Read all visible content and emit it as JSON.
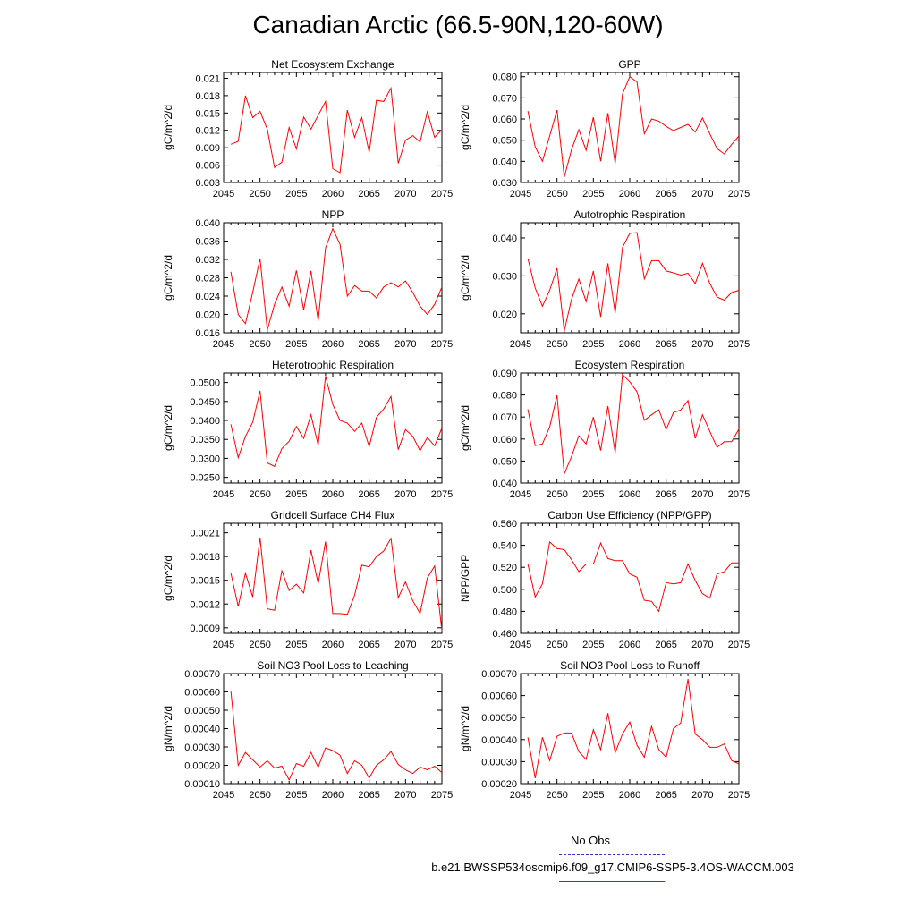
{
  "title": "Canadian Arctic (66.5-90N,120-60W)",
  "legend": {
    "obs_label": "No Obs",
    "obs_color": "#3333cc",
    "case_label": "b.e21.BWSSP534oscmip6.f09_g17.CMIP6-SSP5-3.4OS-WACCM.003",
    "case_color": "#ff0000"
  },
  "chart_data": [
    {
      "type": "line",
      "title": "Net Ecosystem Exchange",
      "ylabel": "gC/m^2/d",
      "xlim": [
        2045,
        2075
      ],
      "ylim": [
        0.003,
        0.022
      ],
      "xticks": [
        "2045",
        "2050",
        "2055",
        "2060",
        "2065",
        "2070",
        "2075"
      ],
      "yticks": [
        "0.003",
        "0.006",
        "0.009",
        "0.012",
        "0.015",
        "0.018",
        "0.021"
      ],
      "x": [
        2046,
        2047,
        2048,
        2049,
        2050,
        2051,
        2052,
        2053,
        2054,
        2055,
        2056,
        2057,
        2058,
        2059,
        2060,
        2061,
        2062,
        2063,
        2064,
        2065,
        2066,
        2067,
        2068,
        2069,
        2070,
        2071,
        2072,
        2073,
        2074,
        2075
      ],
      "values": [
        0.0096,
        0.0101,
        0.018,
        0.0142,
        0.0153,
        0.0122,
        0.0056,
        0.0065,
        0.0125,
        0.0088,
        0.0143,
        0.0122,
        0.0146,
        0.017,
        0.0054,
        0.0047,
        0.0155,
        0.0108,
        0.0142,
        0.0082,
        0.0172,
        0.017,
        0.0193,
        0.0063,
        0.0103,
        0.0111,
        0.01,
        0.0152,
        0.0108,
        0.0121
      ]
    },
    {
      "type": "line",
      "title": "GPP",
      "ylabel": "gC/m^2/d",
      "xlim": [
        2045,
        2075
      ],
      "ylim": [
        0.03,
        0.082
      ],
      "xticks": [
        "2045",
        "2050",
        "2055",
        "2060",
        "2065",
        "2070",
        "2075"
      ],
      "yticks": [
        "0.030",
        "0.040",
        "0.050",
        "0.060",
        "0.070",
        "0.080"
      ],
      "x": [
        2046,
        2047,
        2048,
        2049,
        2050,
        2051,
        2052,
        2053,
        2054,
        2055,
        2056,
        2057,
        2058,
        2059,
        2060,
        2061,
        2062,
        2063,
        2064,
        2065,
        2066,
        2067,
        2068,
        2069,
        2070,
        2071,
        2072,
        2073,
        2074,
        2075
      ],
      "values": [
        0.0638,
        0.0468,
        0.04,
        0.052,
        0.0642,
        0.0325,
        0.0455,
        0.055,
        0.0452,
        0.0608,
        0.04,
        0.0628,
        0.039,
        0.0718,
        0.08,
        0.0775,
        0.053,
        0.06,
        0.059,
        0.0565,
        0.0545,
        0.056,
        0.0575,
        0.0538,
        0.0605,
        0.053,
        0.046,
        0.0435,
        0.048,
        0.052
      ]
    },
    {
      "type": "line",
      "title": "NPP",
      "ylabel": "gC/m^2/d",
      "xlim": [
        2045,
        2075
      ],
      "ylim": [
        0.016,
        0.04
      ],
      "xticks": [
        "2045",
        "2050",
        "2055",
        "2060",
        "2065",
        "2070",
        "2075"
      ],
      "yticks": [
        "0.016",
        "0.020",
        "0.024",
        "0.028",
        "0.032",
        "0.036",
        "0.040"
      ],
      "x": [
        2046,
        2047,
        2048,
        2049,
        2050,
        2051,
        2052,
        2053,
        2054,
        2055,
        2056,
        2057,
        2058,
        2059,
        2060,
        2061,
        2062,
        2063,
        2064,
        2065,
        2066,
        2067,
        2068,
        2069,
        2070,
        2071,
        2072,
        2073,
        2074,
        2075
      ],
      "values": [
        0.0293,
        0.02,
        0.018,
        0.0248,
        0.0322,
        0.0166,
        0.0222,
        0.026,
        0.0218,
        0.0296,
        0.021,
        0.0295,
        0.0186,
        0.0345,
        0.0387,
        0.0353,
        0.024,
        0.0263,
        0.0251,
        0.0251,
        0.0236,
        0.026,
        0.0269,
        0.026,
        0.0273,
        0.0248,
        0.0218,
        0.02,
        0.0222,
        0.026
      ]
    },
    {
      "type": "line",
      "title": "Autotrophic Respiration",
      "ylabel": "gC/m^2/d",
      "xlim": [
        2045,
        2075
      ],
      "ylim": [
        0.015,
        0.044
      ],
      "xticks": [
        "2045",
        "2050",
        "2055",
        "2060",
        "2065",
        "2070",
        "2075"
      ],
      "yticks": [
        "0.020",
        "0.030",
        "0.040"
      ],
      "x": [
        2046,
        2047,
        2048,
        2049,
        2050,
        2051,
        2052,
        2053,
        2054,
        2055,
        2056,
        2057,
        2058,
        2059,
        2060,
        2061,
        2062,
        2063,
        2064,
        2065,
        2066,
        2067,
        2068,
        2069,
        2070,
        2071,
        2072,
        2073,
        2074,
        2075
      ],
      "values": [
        0.0346,
        0.0268,
        0.022,
        0.0262,
        0.032,
        0.0155,
        0.0238,
        0.0292,
        0.0232,
        0.0313,
        0.0192,
        0.0333,
        0.0202,
        0.0375,
        0.0412,
        0.0414,
        0.0292,
        0.034,
        0.034,
        0.0313,
        0.0308,
        0.0302,
        0.0307,
        0.028,
        0.0333,
        0.028,
        0.0244,
        0.0236,
        0.0256,
        0.0262
      ]
    },
    {
      "type": "line",
      "title": "Heterotrophic Respiration",
      "ylabel": "gC/m^2/d",
      "xlim": [
        2045,
        2075
      ],
      "ylim": [
        0.0235,
        0.0525
      ],
      "xticks": [
        "2045",
        "2050",
        "2055",
        "2060",
        "2065",
        "2070",
        "2075"
      ],
      "yticks": [
        "0.0250",
        "0.0300",
        "0.0350",
        "0.0400",
        "0.0450",
        "0.0500"
      ],
      "x": [
        2046,
        2047,
        2048,
        2049,
        2050,
        2051,
        2052,
        2053,
        2054,
        2055,
        2056,
        2057,
        2058,
        2059,
        2060,
        2061,
        2062,
        2063,
        2064,
        2065,
        2066,
        2067,
        2068,
        2069,
        2070,
        2071,
        2072,
        2073,
        2074,
        2075
      ],
      "values": [
        0.039,
        0.0302,
        0.0358,
        0.0395,
        0.0478,
        0.0288,
        0.0279,
        0.0326,
        0.0345,
        0.0384,
        0.0353,
        0.0415,
        0.0335,
        0.0517,
        0.0442,
        0.04,
        0.0393,
        0.0371,
        0.0393,
        0.0331,
        0.0408,
        0.043,
        0.0463,
        0.0323,
        0.0376,
        0.0358,
        0.032,
        0.0355,
        0.0333,
        0.038
      ]
    },
    {
      "type": "line",
      "title": "Ecosystem Respiration",
      "ylabel": "gC/m^2/d",
      "xlim": [
        2045,
        2075
      ],
      "ylim": [
        0.04,
        0.09
      ],
      "xticks": [
        "2045",
        "2050",
        "2055",
        "2060",
        "2065",
        "2070",
        "2075"
      ],
      "yticks": [
        "0.040",
        "0.050",
        "0.060",
        "0.070",
        "0.080",
        "0.090"
      ],
      "x": [
        2046,
        2047,
        2048,
        2049,
        2050,
        2051,
        2052,
        2053,
        2054,
        2055,
        2056,
        2057,
        2058,
        2059,
        2060,
        2061,
        2062,
        2063,
        2064,
        2065,
        2066,
        2067,
        2068,
        2069,
        2070,
        2071,
        2072,
        2073,
        2074,
        2075
      ],
      "values": [
        0.0735,
        0.057,
        0.0578,
        0.0655,
        0.0798,
        0.0442,
        0.052,
        0.0615,
        0.0578,
        0.07,
        0.0548,
        0.075,
        0.0538,
        0.0893,
        0.086,
        0.0815,
        0.0685,
        0.071,
        0.0733,
        0.0643,
        0.072,
        0.0732,
        0.0775,
        0.0603,
        0.071,
        0.0635,
        0.0562,
        0.0588,
        0.0588,
        0.0645
      ]
    },
    {
      "type": "line",
      "title": "Gridcell Surface CH4 Flux",
      "ylabel": "gC/m^2/d",
      "xlim": [
        2045,
        2075
      ],
      "ylim": [
        0.00083,
        0.00222
      ],
      "xticks": [
        "2045",
        "2050",
        "2055",
        "2060",
        "2065",
        "2070",
        "2075"
      ],
      "yticks": [
        "0.0009",
        "0.0012",
        "0.0015",
        "0.0018",
        "0.0021"
      ],
      "x": [
        2046,
        2047,
        2048,
        2049,
        2050,
        2051,
        2052,
        2053,
        2054,
        2055,
        2056,
        2057,
        2058,
        2059,
        2060,
        2061,
        2062,
        2063,
        2064,
        2065,
        2066,
        2067,
        2068,
        2069,
        2070,
        2071,
        2072,
        2073,
        2074,
        2075
      ],
      "values": [
        0.00159,
        0.00117,
        0.00159,
        0.00129,
        0.00204,
        0.00114,
        0.00112,
        0.00162,
        0.00137,
        0.00145,
        0.00134,
        0.00188,
        0.00146,
        0.00199,
        0.00108,
        0.00108,
        0.00107,
        0.00131,
        0.00169,
        0.00167,
        0.0018,
        0.00187,
        0.00203,
        0.00128,
        0.00148,
        0.00124,
        0.00108,
        0.00153,
        0.00168,
        0.00086
      ]
    },
    {
      "type": "line",
      "title": "Carbon Use Efficiency (NPP/GPP)",
      "ylabel": "NPP/GPP",
      "xlim": [
        2045,
        2075
      ],
      "ylim": [
        0.46,
        0.56
      ],
      "xticks": [
        "2045",
        "2050",
        "2055",
        "2060",
        "2065",
        "2070",
        "2075"
      ],
      "yticks": [
        "0.460",
        "0.480",
        "0.500",
        "0.520",
        "0.540",
        "0.560"
      ],
      "x": [
        2046,
        2047,
        2048,
        2049,
        2050,
        2051,
        2052,
        2053,
        2054,
        2055,
        2056,
        2057,
        2058,
        2059,
        2060,
        2061,
        2062,
        2063,
        2064,
        2065,
        2066,
        2067,
        2068,
        2069,
        2070,
        2071,
        2072,
        2073,
        2074,
        2075
      ],
      "values": [
        0.523,
        0.493,
        0.505,
        0.543,
        0.537,
        0.536,
        0.527,
        0.516,
        0.523,
        0.523,
        0.542,
        0.528,
        0.526,
        0.526,
        0.514,
        0.511,
        0.49,
        0.489,
        0.48,
        0.506,
        0.505,
        0.506,
        0.523,
        0.508,
        0.496,
        0.492,
        0.514,
        0.516,
        0.524,
        0.524
      ]
    },
    {
      "type": "line",
      "title": "Soil NO3 Pool Loss to Leaching",
      "ylabel": "gN/m^2/d",
      "xlim": [
        2045,
        2075
      ],
      "ylim": [
        0.0001,
        0.0007
      ],
      "xticks": [
        "2045",
        "2050",
        "2055",
        "2060",
        "2065",
        "2070",
        "2075"
      ],
      "yticks": [
        "0.00010",
        "0.00020",
        "0.00030",
        "0.00040",
        "0.00050",
        "0.00060",
        "0.00070"
      ],
      "x": [
        2046,
        2047,
        2048,
        2049,
        2050,
        2051,
        2052,
        2053,
        2054,
        2055,
        2056,
        2057,
        2058,
        2059,
        2060,
        2061,
        2062,
        2063,
        2064,
        2065,
        2066,
        2067,
        2068,
        2069,
        2070,
        2071,
        2072,
        2073,
        2074,
        2075
      ],
      "values": [
        0.000605,
        0.0002,
        0.00027,
        0.00023,
        0.00019,
        0.000225,
        0.000185,
        0.000195,
        0.00012,
        0.00021,
        0.000195,
        0.00027,
        0.00019,
        0.000295,
        0.00028,
        0.000255,
        0.000155,
        0.000225,
        0.0002,
        0.00013,
        0.0002,
        0.00023,
        0.000275,
        0.000205,
        0.000175,
        0.000155,
        0.00019,
        0.000175,
        0.000195,
        0.00016
      ]
    },
    {
      "type": "line",
      "title": "Soil NO3 Pool Loss to Runoff",
      "ylabel": "gN/m^2/d",
      "xlim": [
        2045,
        2075
      ],
      "ylim": [
        0.0002,
        0.0007
      ],
      "xticks": [
        "2045",
        "2050",
        "2055",
        "2060",
        "2065",
        "2070",
        "2075"
      ],
      "yticks": [
        "0.00020",
        "0.00030",
        "0.00040",
        "0.00050",
        "0.00060",
        "0.00070"
      ],
      "x": [
        2046,
        2047,
        2048,
        2049,
        2050,
        2051,
        2052,
        2053,
        2054,
        2055,
        2056,
        2057,
        2058,
        2059,
        2060,
        2061,
        2062,
        2063,
        2064,
        2065,
        2066,
        2067,
        2068,
        2069,
        2070,
        2071,
        2072,
        2073,
        2074,
        2075
      ],
      "values": [
        0.00041,
        0.000225,
        0.00041,
        0.000305,
        0.000415,
        0.00043,
        0.00043,
        0.000345,
        0.00031,
        0.000445,
        0.000355,
        0.00052,
        0.00034,
        0.000425,
        0.00048,
        0.000375,
        0.00032,
        0.00046,
        0.000355,
        0.00032,
        0.00045,
        0.000475,
        0.000675,
        0.000425,
        0.0004,
        0.000365,
        0.000365,
        0.00038,
        0.000305,
        0.00029
      ]
    }
  ]
}
